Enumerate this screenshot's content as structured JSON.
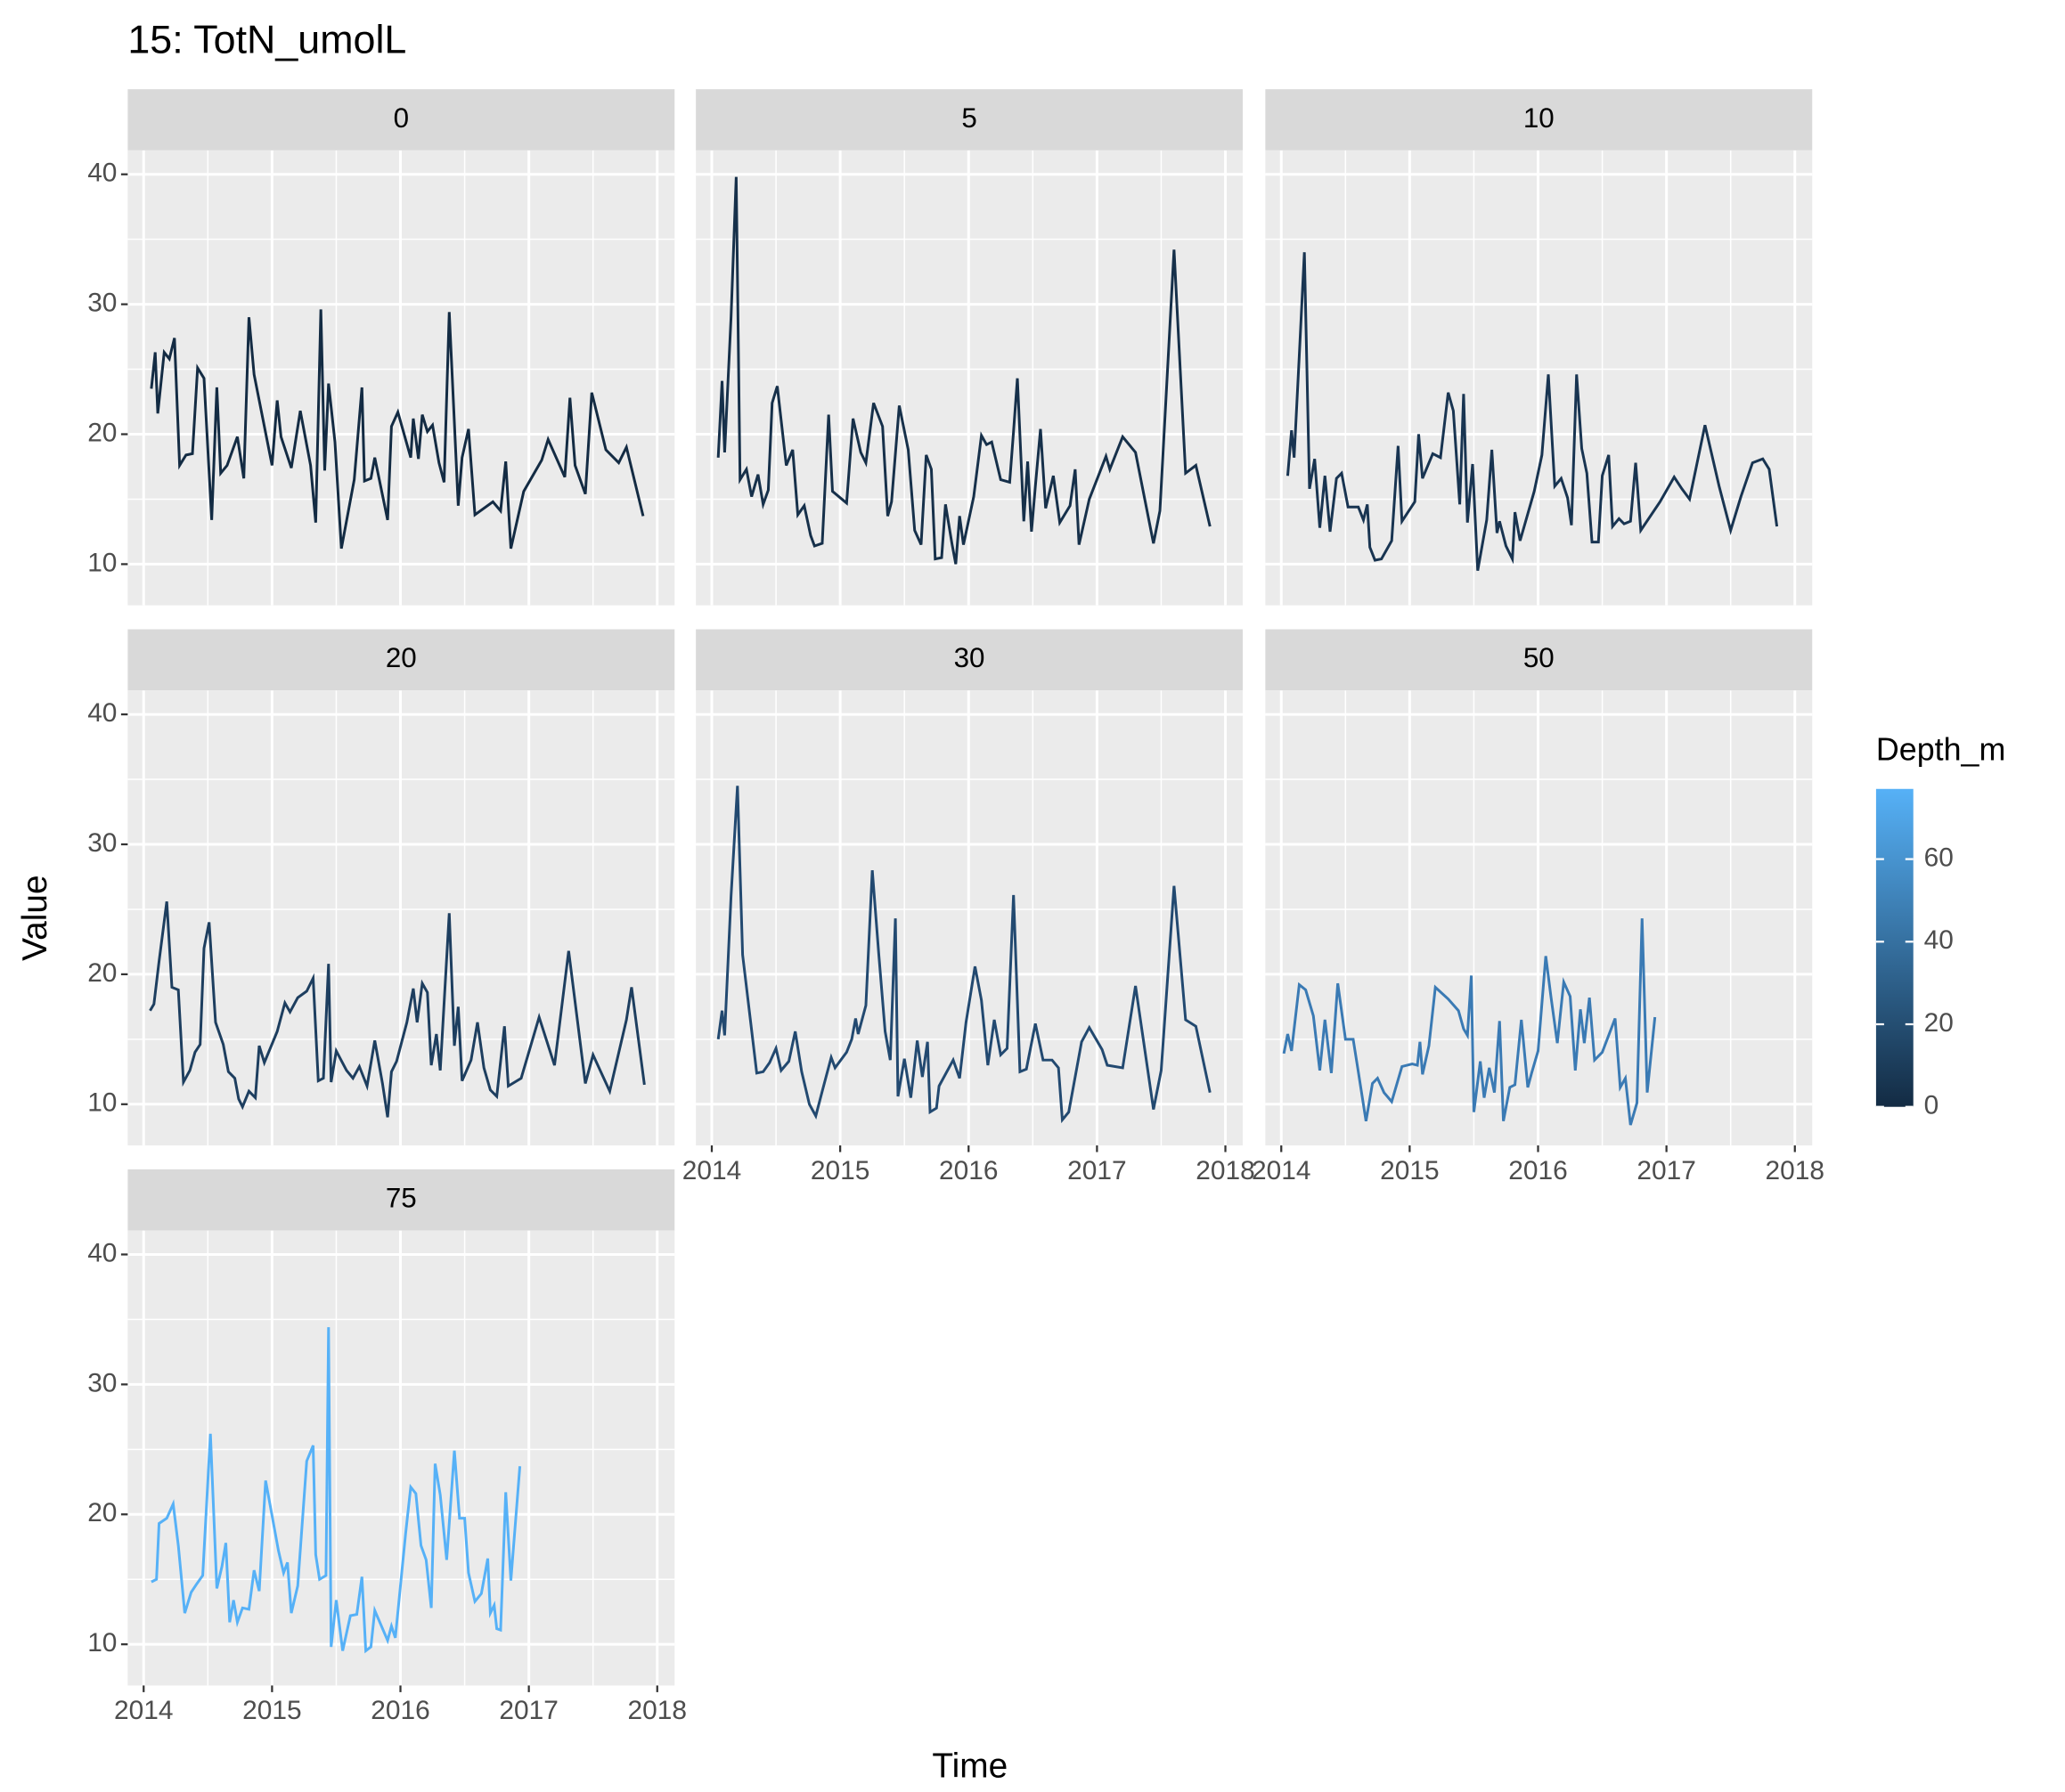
{
  "chart_data": {
    "type": "line",
    "title": "15: TotN_umolL",
    "x_label": "Time",
    "y_label": "Value",
    "xlim": [
      2013.876,
      2018.135
    ],
    "ylim": [
      6.83,
      41.84
    ],
    "xticks": [
      2014,
      2015,
      2016,
      2017,
      2018
    ],
    "yticks": [
      10,
      20,
      30,
      40
    ],
    "grid": true,
    "minor_grid": true,
    "colorbar": {
      "title": "Depth_m",
      "limits": [
        0,
        77
      ],
      "ticks": [
        0,
        20,
        40,
        60
      ],
      "low": "#132B43",
      "high": "#56B1F7"
    },
    "series": [
      {
        "name": "0",
        "color": "#132B43",
        "x": [
          2014.06,
          2014.09,
          2014.11,
          2014.16,
          2014.2,
          2014.24,
          2014.28,
          2014.33,
          2014.38,
          2014.42,
          2014.47,
          2014.53,
          2014.57,
          2014.6,
          2014.65,
          2014.73,
          2014.78,
          2014.82,
          2014.86,
          2015.0,
          2015.04,
          2015.07,
          2015.15,
          2015.22,
          2015.3,
          2015.34,
          2015.38,
          2015.41,
          2015.44,
          2015.49,
          2015.54,
          2015.64,
          2015.7,
          2015.72,
          2015.77,
          2015.8,
          2015.9,
          2015.93,
          2015.98,
          2016.08,
          2016.1,
          2016.14,
          2016.17,
          2016.21,
          2016.25,
          2016.3,
          2016.34,
          2016.38,
          2016.45,
          2016.48,
          2016.53,
          2016.58,
          2016.72,
          2016.78,
          2016.82,
          2016.86,
          2016.96,
          2017.1,
          2017.15,
          2017.28,
          2017.32,
          2017.36,
          2017.44,
          2017.49,
          2017.6,
          2017.7,
          2017.76,
          2017.89
        ],
        "values": [
          23.5,
          26.3,
          21.6,
          26.3,
          25.8,
          27.4,
          17.6,
          18.4,
          18.5,
          25.1,
          24.3,
          13.4,
          23.6,
          17,
          17.6,
          19.8,
          16.6,
          29,
          24.6,
          17.6,
          22.6,
          19.8,
          17.4,
          21.8,
          17.6,
          13.2,
          29.6,
          17.2,
          23.9,
          19.4,
          11.2,
          16.5,
          23.6,
          16.4,
          16.6,
          18.2,
          13.4,
          20.6,
          21.7,
          18.2,
          21.2,
          18.1,
          21.5,
          20.2,
          20.7,
          17.8,
          16.3,
          29.4,
          14.5,
          18.2,
          20.4,
          13.8,
          14.8,
          14.1,
          17.9,
          11.2,
          15.6,
          18,
          19.6,
          16.7,
          22.8,
          17.6,
          15.4,
          23.2,
          18.8,
          17.8,
          19,
          13.7
        ]
      },
      {
        "name": "5",
        "color": "#16304A",
        "x": [
          2014.05,
          2014.08,
          2014.1,
          2014.15,
          2014.19,
          2014.22,
          2014.27,
          2014.31,
          2014.36,
          2014.4,
          2014.44,
          2014.47,
          2014.51,
          2014.58,
          2014.63,
          2014.67,
          2014.72,
          2014.77,
          2014.8,
          2014.86,
          2014.91,
          2014.94,
          2015.05,
          2015.1,
          2015.16,
          2015.2,
          2015.26,
          2015.33,
          2015.37,
          2015.4,
          2015.46,
          2015.53,
          2015.58,
          2015.63,
          2015.67,
          2015.71,
          2015.74,
          2015.79,
          2015.82,
          2015.87,
          2015.9,
          2015.93,
          2015.96,
          2016.04,
          2016.1,
          2016.14,
          2016.18,
          2016.25,
          2016.32,
          2016.35,
          2016.38,
          2016.43,
          2016.46,
          2016.49,
          2016.52,
          2016.56,
          2016.6,
          2016.66,
          2016.71,
          2016.79,
          2016.83,
          2016.86,
          2016.94,
          2017.07,
          2017.1,
          2017.2,
          2017.3,
          2017.44,
          2017.49,
          2017.6,
          2017.69,
          2017.77,
          2017.88
        ],
        "values": [
          18.2,
          24.1,
          18.6,
          29,
          39.8,
          16.5,
          17.3,
          15.2,
          16.9,
          14.6,
          15.7,
          22.4,
          23.7,
          17.6,
          18.8,
          13.8,
          14.5,
          12.2,
          11.4,
          11.6,
          21.5,
          15.6,
          14.7,
          21.2,
          18.6,
          17.8,
          22.4,
          20.6,
          13.7,
          14.8,
          22.2,
          18.8,
          12.6,
          11.5,
          18.4,
          17.3,
          10.4,
          10.5,
          14.6,
          11.6,
          10,
          13.7,
          11.5,
          15.2,
          19.9,
          19.2,
          19.4,
          16.5,
          16.3,
          20.2,
          24.3,
          13.3,
          17.9,
          12.5,
          16,
          20.4,
          14.3,
          16.8,
          13.2,
          14.5,
          17.3,
          11.5,
          15,
          18.3,
          17.3,
          19.8,
          18.6,
          11.6,
          14.1,
          34.2,
          17,
          17.6,
          12.9
        ]
      },
      {
        "name": "10",
        "color": "#183451",
        "x": [
          2014.05,
          2014.08,
          2014.1,
          2014.14,
          2014.18,
          2014.22,
          2014.26,
          2014.3,
          2014.34,
          2014.38,
          2014.43,
          2014.47,
          2014.52,
          2014.6,
          2014.64,
          2014.67,
          2014.69,
          2014.73,
          2014.78,
          2014.86,
          2014.91,
          2014.94,
          2015.04,
          2015.07,
          2015.1,
          2015.18,
          2015.24,
          2015.3,
          2015.34,
          2015.39,
          2015.42,
          2015.45,
          2015.49,
          2015.53,
          2015.6,
          2015.64,
          2015.68,
          2015.7,
          2015.75,
          2015.8,
          2015.82,
          2015.86,
          2015.97,
          2016.03,
          2016.08,
          2016.13,
          2016.18,
          2016.23,
          2016.26,
          2016.3,
          2016.34,
          2016.38,
          2016.42,
          2016.47,
          2016.5,
          2016.55,
          2016.58,
          2016.63,
          2016.67,
          2016.72,
          2016.76,
          2016.8,
          2016.95,
          2017.06,
          2017.12,
          2017.18,
          2017.3,
          2017.41,
          2017.5,
          2017.58,
          2017.67,
          2017.75,
          2017.8,
          2017.86
        ],
        "values": [
          16.8,
          20.3,
          18.2,
          26,
          34,
          15.8,
          18.1,
          12.8,
          16.8,
          12.5,
          16.6,
          17,
          14.4,
          14.4,
          13.4,
          14.6,
          11.3,
          10.3,
          10.4,
          11.8,
          19.1,
          13.3,
          14.8,
          20,
          16.6,
          18.5,
          18.2,
          23.2,
          21.8,
          14.6,
          23.1,
          13.2,
          17.7,
          9.5,
          13.4,
          18.8,
          12.4,
          13.3,
          11.4,
          10.4,
          14,
          11.8,
          15.6,
          18.4,
          24.6,
          16,
          16.6,
          15.1,
          13,
          24.6,
          18.9,
          17,
          11.7,
          11.7,
          16.8,
          18.4,
          12.9,
          13.5,
          13.1,
          13.3,
          17.8,
          12.6,
          14.8,
          16.7,
          15.8,
          15,
          20.7,
          16,
          12.6,
          15.2,
          17.8,
          18.1,
          17.3,
          12.9
        ]
      },
      {
        "name": "20",
        "color": "#1D3E5F",
        "x": [
          2014.05,
          2014.08,
          2014.12,
          2014.18,
          2014.22,
          2014.27,
          2014.31,
          2014.36,
          2014.4,
          2014.44,
          2014.47,
          2014.51,
          2014.56,
          2014.62,
          2014.66,
          2014.71,
          2014.74,
          2014.77,
          2014.82,
          2014.87,
          2014.9,
          2014.94,
          2015.04,
          2015.1,
          2015.14,
          2015.2,
          2015.27,
          2015.32,
          2015.36,
          2015.4,
          2015.44,
          2015.46,
          2015.5,
          2015.58,
          2015.63,
          2015.68,
          2015.74,
          2015.8,
          2015.86,
          2015.9,
          2015.93,
          2015.97,
          2016.05,
          2016.1,
          2016.13,
          2016.17,
          2016.21,
          2016.24,
          2016.28,
          2016.31,
          2016.38,
          2016.42,
          2016.45,
          2016.48,
          2016.55,
          2016.6,
          2016.65,
          2016.7,
          2016.75,
          2016.81,
          2016.84,
          2016.94,
          2017.08,
          2017.2,
          2017.31,
          2017.44,
          2017.5,
          2017.63,
          2017.76,
          2017.8,
          2017.9
        ],
        "values": [
          17.2,
          17.7,
          21,
          25.6,
          19,
          18.8,
          11.7,
          12.6,
          14,
          14.6,
          22,
          24,
          16.3,
          14.6,
          12.5,
          12,
          10.4,
          9.8,
          11,
          10.5,
          14.5,
          13.2,
          15.6,
          17.8,
          17.1,
          18.2,
          18.7,
          19.7,
          11.8,
          12,
          20.8,
          11.7,
          14.1,
          12.6,
          12,
          12.9,
          11.4,
          14.9,
          11.6,
          9,
          12.5,
          13.3,
          16.3,
          18.9,
          16.3,
          19.3,
          18.6,
          13,
          15.4,
          12.6,
          24.7,
          14.5,
          17.5,
          11.8,
          13.4,
          16.3,
          12.8,
          11.1,
          10.6,
          16,
          11.4,
          12,
          16.7,
          13,
          21.8,
          11.6,
          13.8,
          11,
          16.5,
          19,
          11.5
        ]
      },
      {
        "name": "30",
        "color": "#224970",
        "x": [
          2014.05,
          2014.08,
          2014.1,
          2014.15,
          2014.2,
          2014.24,
          2014.35,
          2014.4,
          2014.45,
          2014.5,
          2014.54,
          2014.6,
          2014.65,
          2014.7,
          2014.76,
          2014.81,
          2014.86,
          2014.93,
          2014.96,
          2015.05,
          2015.09,
          2015.12,
          2015.14,
          2015.2,
          2015.25,
          2015.3,
          2015.35,
          2015.39,
          2015.43,
          2015.45,
          2015.5,
          2015.55,
          2015.6,
          2015.64,
          2015.68,
          2015.7,
          2015.75,
          2015.77,
          2015.88,
          2015.93,
          2015.98,
          2016.05,
          2016.1,
          2016.15,
          2016.2,
          2016.25,
          2016.3,
          2016.35,
          2016.4,
          2016.45,
          2016.52,
          2016.58,
          2016.65,
          2016.7,
          2016.73,
          2016.78,
          2016.88,
          2016.94,
          2017.04,
          2017.08,
          2017.2,
          2017.3,
          2017.44,
          2017.5,
          2017.6,
          2017.69,
          2017.77,
          2017.88
        ],
        "values": [
          15,
          17.2,
          15.3,
          26,
          34.5,
          21.5,
          12.4,
          12.5,
          13.2,
          14.3,
          12.6,
          13.3,
          15.6,
          12.5,
          10,
          9.1,
          11,
          13.6,
          12.8,
          14,
          15,
          16.6,
          15.4,
          17.6,
          28,
          21.6,
          15.6,
          13.4,
          24.3,
          10.6,
          13.5,
          10.5,
          14.9,
          12.1,
          14.8,
          9.4,
          9.7,
          11.4,
          13.4,
          12,
          16.3,
          20.6,
          18,
          13,
          16.5,
          13.8,
          14.3,
          26.1,
          12.5,
          12.7,
          16.2,
          13.4,
          13.4,
          12.8,
          8.8,
          9.4,
          14.8,
          15.9,
          14.2,
          13,
          12.8,
          19.1,
          9.6,
          12.6,
          26.8,
          16.5,
          16,
          10.9
        ]
      },
      {
        "name": "50",
        "color": "#3A7AB4",
        "x": [
          2014.02,
          2014.05,
          2014.08,
          2014.14,
          2014.19,
          2014.25,
          2014.3,
          2014.34,
          2014.39,
          2014.44,
          2014.5,
          2014.56,
          2014.6,
          2014.66,
          2014.71,
          2014.75,
          2014.8,
          2014.86,
          2014.94,
          2015.02,
          2015.06,
          2015.08,
          2015.1,
          2015.15,
          2015.2,
          2015.3,
          2015.38,
          2015.42,
          2015.45,
          2015.48,
          2015.5,
          2015.55,
          2015.58,
          2015.62,
          2015.66,
          2015.7,
          2015.73,
          2015.78,
          2015.82,
          2015.87,
          2015.92,
          2015.95,
          2016.0,
          2016.06,
          2016.1,
          2016.15,
          2016.2,
          2016.25,
          2016.29,
          2016.33,
          2016.36,
          2016.4,
          2016.44,
          2016.5,
          2016.6,
          2016.64,
          2016.68,
          2016.72,
          2016.77,
          2016.81,
          2016.85,
          2016.91
        ],
        "values": [
          13.9,
          15.4,
          14.1,
          19.2,
          18.8,
          16.8,
          12.6,
          16.5,
          12.4,
          19.3,
          15,
          15,
          12.5,
          8.7,
          11.6,
          12,
          10.9,
          10.2,
          12.9,
          13.1,
          13,
          14.8,
          12.3,
          14.5,
          19,
          18.1,
          17.2,
          15.8,
          15.3,
          19.9,
          9.4,
          13.3,
          10.5,
          12.8,
          10.9,
          16.4,
          8.7,
          11.3,
          11.5,
          16.5,
          11.3,
          12.4,
          14.1,
          21.4,
          18.3,
          14.7,
          19.4,
          18.3,
          12.6,
          17.3,
          14.7,
          18.2,
          13.4,
          14,
          16.6,
          11.3,
          12,
          8.4,
          10.1,
          24.3,
          10.9,
          16.7
        ]
      },
      {
        "name": "75",
        "color": "#56B1F7",
        "x": [
          2014.06,
          2014.1,
          2014.12,
          2014.18,
          2014.23,
          2014.27,
          2014.32,
          2014.37,
          2014.41,
          2014.46,
          2014.52,
          2014.57,
          2014.61,
          2014.64,
          2014.67,
          2014.7,
          2014.73,
          2014.77,
          2014.82,
          2014.86,
          2014.9,
          2014.95,
          2015.05,
          2015.09,
          2015.12,
          2015.15,
          2015.2,
          2015.27,
          2015.32,
          2015.34,
          2015.37,
          2015.42,
          2015.44,
          2015.46,
          2015.5,
          2015.55,
          2015.61,
          2015.66,
          2015.7,
          2015.73,
          2015.77,
          2015.8,
          2015.9,
          2015.93,
          2015.96,
          2016.04,
          2016.08,
          2016.12,
          2016.16,
          2016.2,
          2016.24,
          2016.27,
          2016.31,
          2016.36,
          2016.42,
          2016.46,
          2016.5,
          2016.53,
          2016.58,
          2016.63,
          2016.68,
          2016.7,
          2016.73,
          2016.75,
          2016.78,
          2016.82,
          2016.86,
          2016.93
        ],
        "values": [
          14.8,
          15,
          19.3,
          19.7,
          20.8,
          17.6,
          12.4,
          14,
          14.6,
          15.3,
          26.2,
          14.3,
          16,
          17.8,
          11.7,
          13.4,
          11.7,
          12.8,
          12.7,
          15.7,
          14.1,
          22.6,
          17.2,
          15.5,
          16.3,
          12.4,
          14.5,
          24.1,
          25.3,
          16.9,
          15,
          15.3,
          34.4,
          9.8,
          13.4,
          9.5,
          12.2,
          12.3,
          15.2,
          9.5,
          9.8,
          12.6,
          10.3,
          11.4,
          10.5,
          18.5,
          22.1,
          21.6,
          17.6,
          16.5,
          12.8,
          23.9,
          21.5,
          16.5,
          24.9,
          19.7,
          19.7,
          15.5,
          13.3,
          13.9,
          16.6,
          12.4,
          13,
          11.2,
          11.1,
          21.7,
          14.9,
          23.7
        ]
      }
    ]
  }
}
